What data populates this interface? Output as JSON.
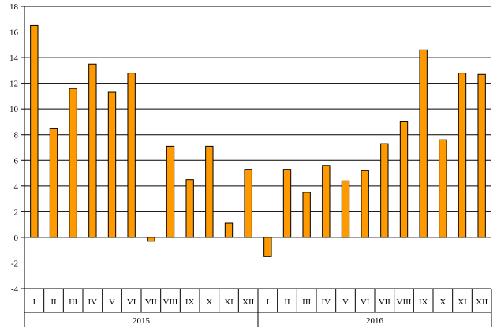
{
  "chart_data": {
    "type": "bar",
    "yticks": [
      -4,
      -2,
      0,
      2,
      4,
      6,
      8,
      10,
      12,
      14,
      16,
      18
    ],
    "ylim": [
      -4,
      18
    ],
    "grid": "horizontal",
    "bar_color": "#ff9900",
    "groups": [
      {
        "label": "2015",
        "categories": [
          "I",
          "II",
          "III",
          "IV",
          "V",
          "VI",
          "VII",
          "VIII",
          "IX",
          "X",
          "XI",
          "XII"
        ],
        "values": [
          16.5,
          8.5,
          11.6,
          13.5,
          11.3,
          12.8,
          -0.3,
          7.1,
          4.5,
          7.1,
          1.1,
          5.3
        ]
      },
      {
        "label": "2016",
        "categories": [
          "I",
          "II",
          "III",
          "IV",
          "V",
          "VI",
          "VII",
          "VIII",
          "IX",
          "X",
          "XI",
          "XII"
        ],
        "values": [
          -1.5,
          5.3,
          3.5,
          5.6,
          4.4,
          5.2,
          7.3,
          9.0,
          14.6,
          7.6,
          12.8,
          12.7
        ]
      }
    ]
  }
}
